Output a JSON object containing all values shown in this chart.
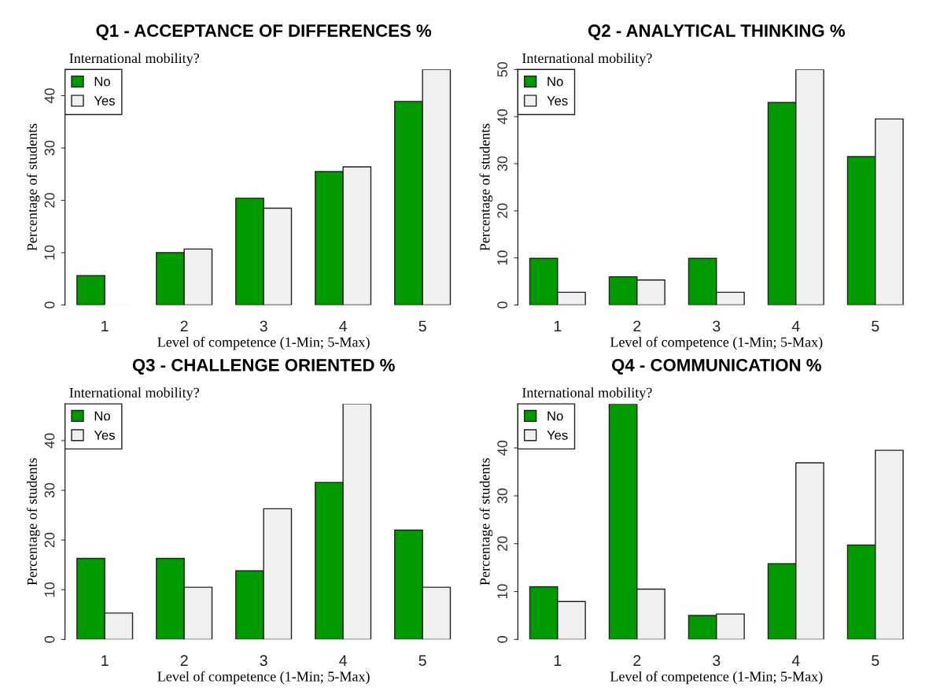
{
  "chart_data": [
    {
      "type": "bar",
      "title": "Q1 - ACCEPTANCE OF DIFFERENCES %",
      "xlabel": "Level of competence (1-Min; 5-Max)",
      "ylabel": "Percentage of students",
      "legend_title": "International mobility?",
      "categories": [
        "1",
        "2",
        "3",
        "4",
        "5"
      ],
      "series": [
        {
          "name": "No",
          "color": "#009900",
          "values": [
            5.6,
            10.0,
            20.4,
            25.5,
            38.9
          ]
        },
        {
          "name": "Yes",
          "color": "#f0f0f0",
          "values": [
            0,
            10.7,
            18.5,
            26.4,
            45.0
          ]
        }
      ],
      "ylim": [
        0,
        45
      ],
      "yticks": [
        0,
        10,
        20,
        30,
        40
      ],
      "legend": "top left",
      "grid": false
    },
    {
      "type": "bar",
      "title": "Q2 - ANALYTICAL THINKING %",
      "xlabel": "Level of competence (1-Min; 5-Max)",
      "ylabel": "Percentage of students",
      "legend_title": "International mobility?",
      "categories": [
        "1",
        "2",
        "3",
        "4",
        "5"
      ],
      "series": [
        {
          "name": "No",
          "color": "#009900",
          "values": [
            9.9,
            6.0,
            9.9,
            43.0,
            31.5
          ]
        },
        {
          "name": "Yes",
          "color": "#f0f0f0",
          "values": [
            2.7,
            5.3,
            2.7,
            50.0,
            39.5
          ]
        }
      ],
      "ylim": [
        0,
        50
      ],
      "yticks": [
        0,
        10,
        20,
        30,
        40,
        50
      ],
      "legend": "top left",
      "grid": false
    },
    {
      "type": "bar",
      "title": "Q3 - CHALLENGE ORIENTED %",
      "xlabel": "Level of competence (1-Min; 5-Max)",
      "ylabel": "Percentage of students",
      "legend_title": "International mobility?",
      "categories": [
        "1",
        "2",
        "3",
        "4",
        "5"
      ],
      "series": [
        {
          "name": "No",
          "color": "#009900",
          "values": [
            16.3,
            16.3,
            13.8,
            31.6,
            22.0
          ]
        },
        {
          "name": "Yes",
          "color": "#f0f0f0",
          "values": [
            5.3,
            10.5,
            26.3,
            47.4,
            10.5
          ]
        }
      ],
      "ylim": [
        0,
        47.4
      ],
      "yticks": [
        0,
        10,
        20,
        30,
        40
      ],
      "legend": "top left",
      "grid": false
    },
    {
      "type": "bar",
      "title": "Q4 - COMMUNICATION %",
      "xlabel": "Level of competence (1-Min; 5-Max)",
      "ylabel": "Percentage of students",
      "legend_title": "International mobility?",
      "categories": [
        "1",
        "2",
        "3",
        "4",
        "5"
      ],
      "series": [
        {
          "name": "No",
          "color": "#009900",
          "values": [
            11.0,
            49.2,
            5.0,
            15.8,
            19.7
          ]
        },
        {
          "name": "Yes",
          "color": "#f0f0f0",
          "values": [
            7.9,
            10.5,
            5.3,
            36.9,
            39.5
          ]
        }
      ],
      "ylim": [
        0,
        49.2
      ],
      "yticks": [
        0,
        10,
        20,
        30,
        40
      ],
      "legend": "top left",
      "grid": false
    }
  ]
}
